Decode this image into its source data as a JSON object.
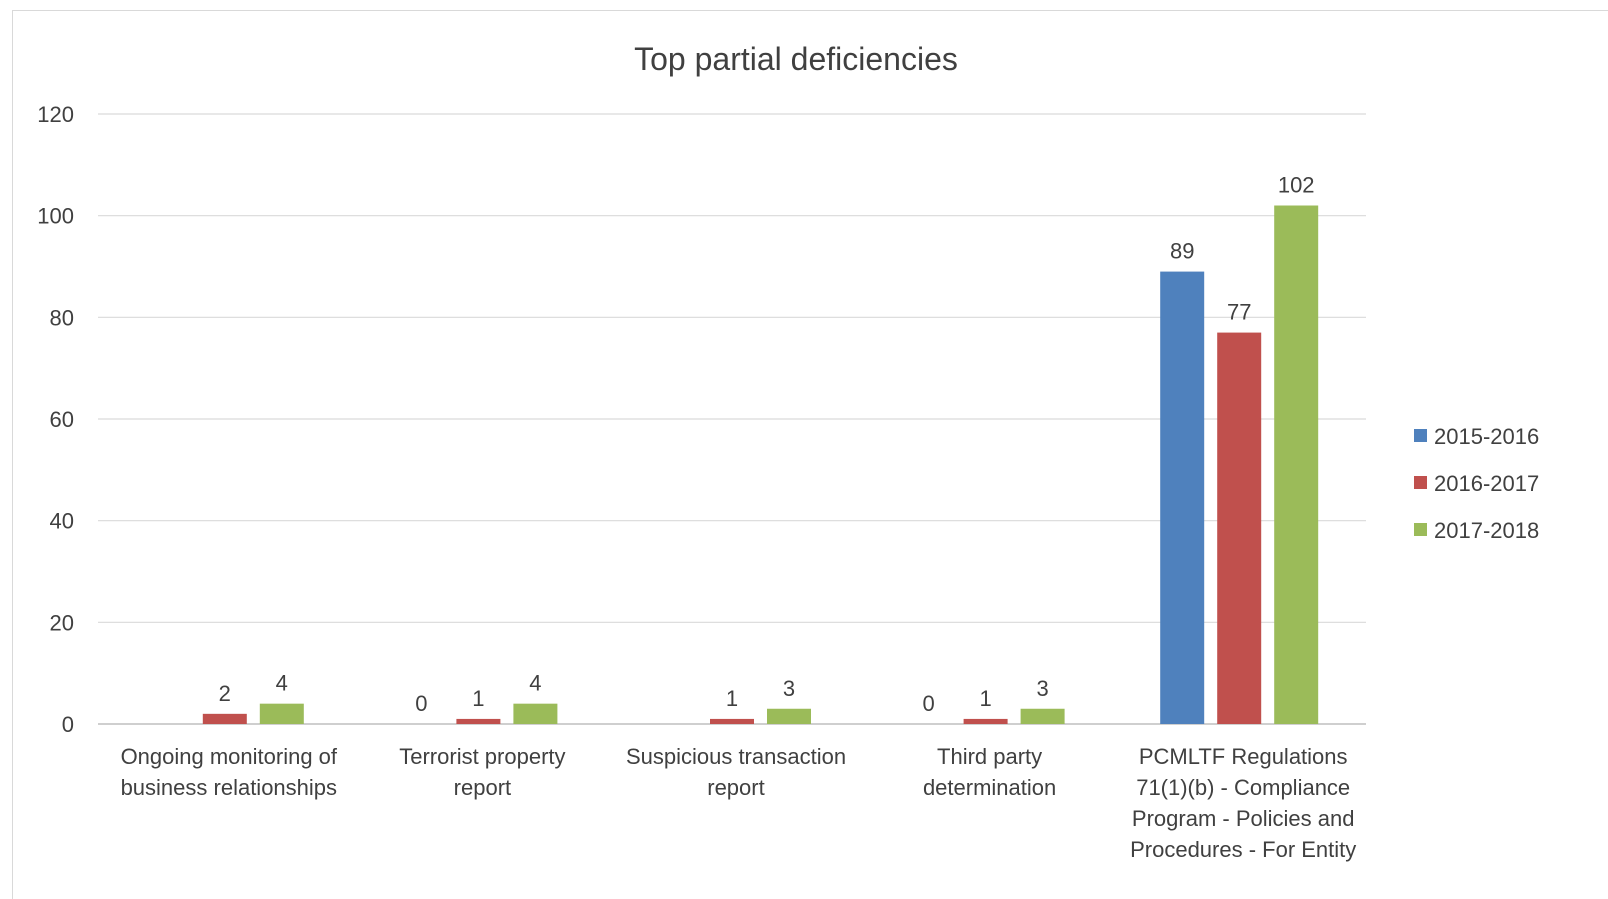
{
  "chart_data": {
    "type": "bar",
    "title": "Top partial deficiencies",
    "xlabel": "",
    "ylabel": "",
    "ylim": [
      0,
      120
    ],
    "yticks": [
      0,
      20,
      40,
      60,
      80,
      100,
      120
    ],
    "grid": true,
    "legend_position": "right",
    "categories": [
      [
        "Ongoing monitoring of",
        "business relationships"
      ],
      [
        "Terrorist property",
        "report"
      ],
      [
        "Suspicious transaction",
        "report"
      ],
      [
        "Third party",
        "determination"
      ],
      [
        "PCMLTF Regulations",
        "71(1)(b) - Compliance",
        "Program - Policies and",
        "Procedures - For Entity"
      ]
    ],
    "series": [
      {
        "name": "2015-2016",
        "color": "#4f81bd",
        "values": [
          null,
          0,
          null,
          0,
          89
        ]
      },
      {
        "name": "2016-2017",
        "color": "#c0504d",
        "values": [
          2,
          1,
          1,
          1,
          77
        ]
      },
      {
        "name": "2017-2018",
        "color": "#9bbb59",
        "values": [
          4,
          4,
          3,
          3,
          102
        ]
      }
    ]
  }
}
